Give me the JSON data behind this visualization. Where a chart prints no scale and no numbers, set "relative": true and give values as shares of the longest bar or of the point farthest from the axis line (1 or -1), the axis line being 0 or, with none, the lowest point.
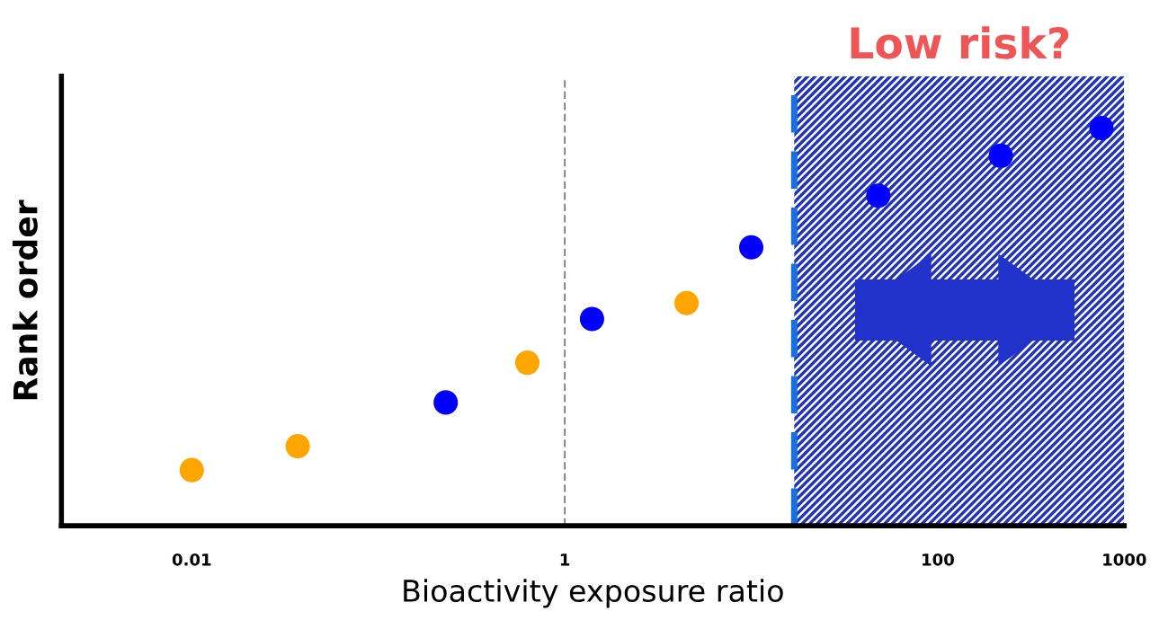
{
  "chart_data": {
    "type": "scatter",
    "xlabel": "Bioactivity exposure ratio",
    "ylabel": "Rank order",
    "log": "x",
    "xlim": [
      0.002,
      1000
    ],
    "xticks": [
      0.01,
      1,
      100,
      1000
    ],
    "relative": true,
    "marker": "circle",
    "series": [
      {
        "color": "#ffa500",
        "x": [
          0.01,
          0.037,
          0.63,
          4.5
        ],
        "values": [
          0.14,
          0.2,
          0.41,
          0.56
        ]
      },
      {
        "color": "#0000ff",
        "x": [
          0.23,
          1.4,
          10,
          48,
          218,
          755
        ],
        "values": [
          0.31,
          0.52,
          0.7,
          0.83,
          0.93,
          1
        ]
      }
    ],
    "ref_lines": [
      {
        "axis": "x",
        "value": 1,
        "color": "#555555",
        "line_style": "dashed"
      },
      {
        "axis": "x",
        "value": 17,
        "color": "#1a6fdf",
        "line_style": "dashed"
      }
    ],
    "bands": [
      {
        "axis": "x",
        "from": 17,
        "to": 1000,
        "label": "Low risk?",
        "color": "#2233bb"
      }
    ]
  }
}
